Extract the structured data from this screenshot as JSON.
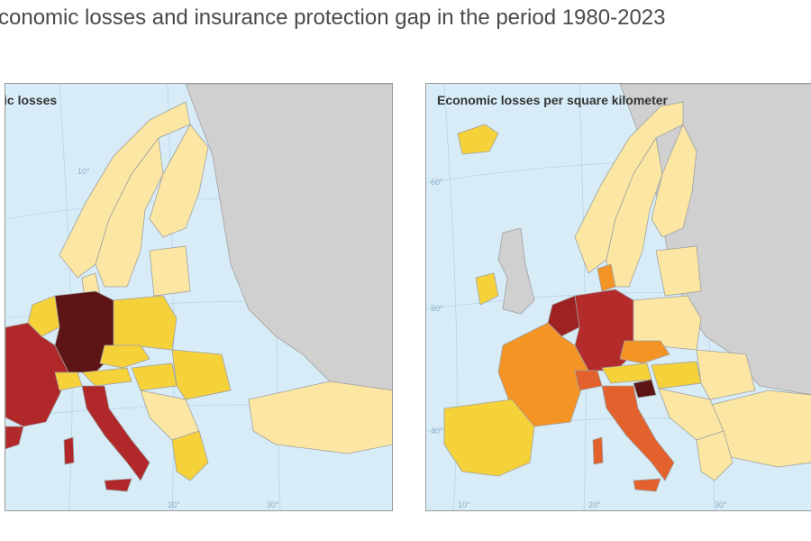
{
  "title": "conomic losses and insurance protection gap in the period 1980-2023",
  "maps": [
    {
      "title": "ic losses",
      "graticule": [
        "10°",
        "20°",
        "30°"
      ],
      "countries": {
        "germany": "#5c1414",
        "france": "#b0282a",
        "italy": "#b0282a",
        "uk": "#f6d23a",
        "norway": "#fbe7a3",
        "sweden": "#fbe7a3",
        "finland": "#fbe7a3",
        "denmark": "#fbe7a3",
        "poland": "#f6d23a",
        "czechia": "#f6d23a",
        "austria": "#f6d23a",
        "switzerland": "#f6d23a",
        "benelux": "#f6d23a",
        "spain": "#b0282a",
        "hungary": "#f6d23a",
        "romania": "#f6d23a",
        "balkans": "#fbe7a3",
        "greece": "#f6d23a",
        "turkey": "#fbe7a3",
        "baltics": "#fbe7a3",
        "non_eea": "#d0d0d0"
      }
    },
    {
      "title": "Economic losses per square kilometer",
      "graticule": [
        "60°",
        "50°",
        "40°",
        "10°",
        "20°",
        "30°"
      ],
      "countries": {
        "germany": "#b32b2b",
        "france": "#f39425",
        "italy": "#e2612c",
        "uk": "#d0d0d0",
        "norway": "#fbe7a3",
        "sweden": "#fbe7a3",
        "finland": "#fbe7a3",
        "denmark": "#f39425",
        "poland": "#fbe7a3",
        "czechia": "#f39425",
        "austria": "#f6d23a",
        "switzerland": "#e2612c",
        "benelux": "#9e2222",
        "spain": "#f6d23a",
        "hungary": "#f6d23a",
        "romania": "#fbe7a3",
        "balkans": "#fbe7a3",
        "greece": "#fbe7a3",
        "turkey": "#fbe7a3",
        "baltics": "#fbe7a3",
        "slovenia": "#5c1414",
        "ireland": "#f6d23a",
        "iceland": "#f6d23a",
        "non_eea": "#d0d0d0"
      }
    }
  ]
}
